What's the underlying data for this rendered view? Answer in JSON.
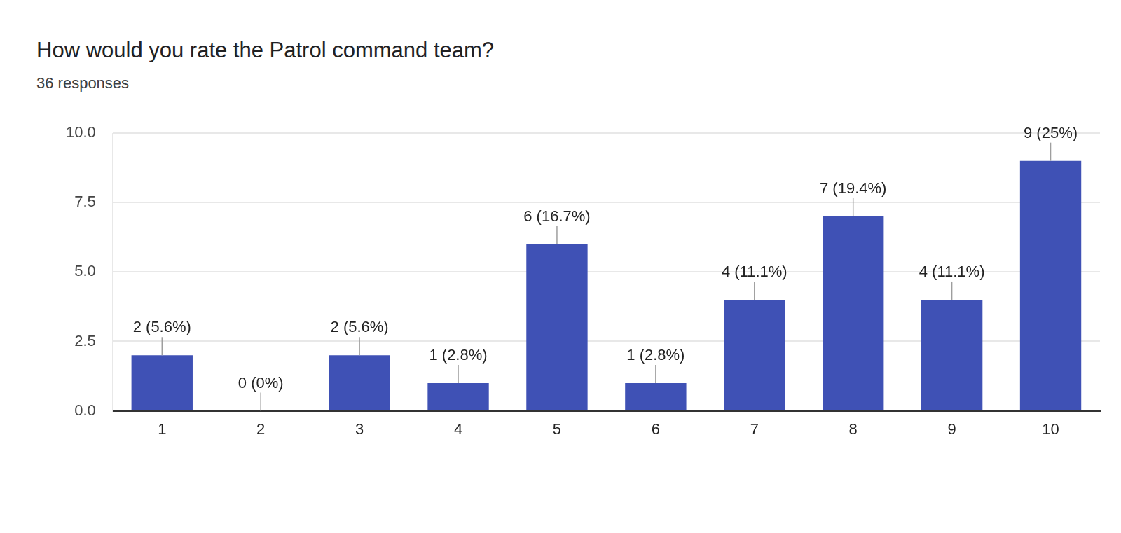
{
  "chart_data": {
    "type": "bar",
    "title": "How would you rate the Patrol command team?",
    "subtitle": "36 responses",
    "categories": [
      "1",
      "2",
      "3",
      "4",
      "5",
      "6",
      "7",
      "8",
      "9",
      "10"
    ],
    "values": [
      2,
      0,
      2,
      1,
      6,
      1,
      4,
      7,
      4,
      9
    ],
    "value_labels": [
      "2 (5.6%)",
      "0 (0%)",
      "2 (5.6%)",
      "1 (2.8%)",
      "6 (16.7%)",
      "1 (2.8%)",
      "4 (11.1%)",
      "7 (19.4%)",
      "4 (11.1%)",
      "9 (25%)"
    ],
    "data_labels": true,
    "color": "#3f51b5",
    "ylim": [
      0,
      10
    ],
    "yticks": [
      {
        "value": 0,
        "label": "0.0"
      },
      2.5,
      {
        "value": 5,
        "label": "5.0"
      },
      7.5,
      {
        "value": 10,
        "label": "10.0"
      }
    ],
    "grid": true
  }
}
